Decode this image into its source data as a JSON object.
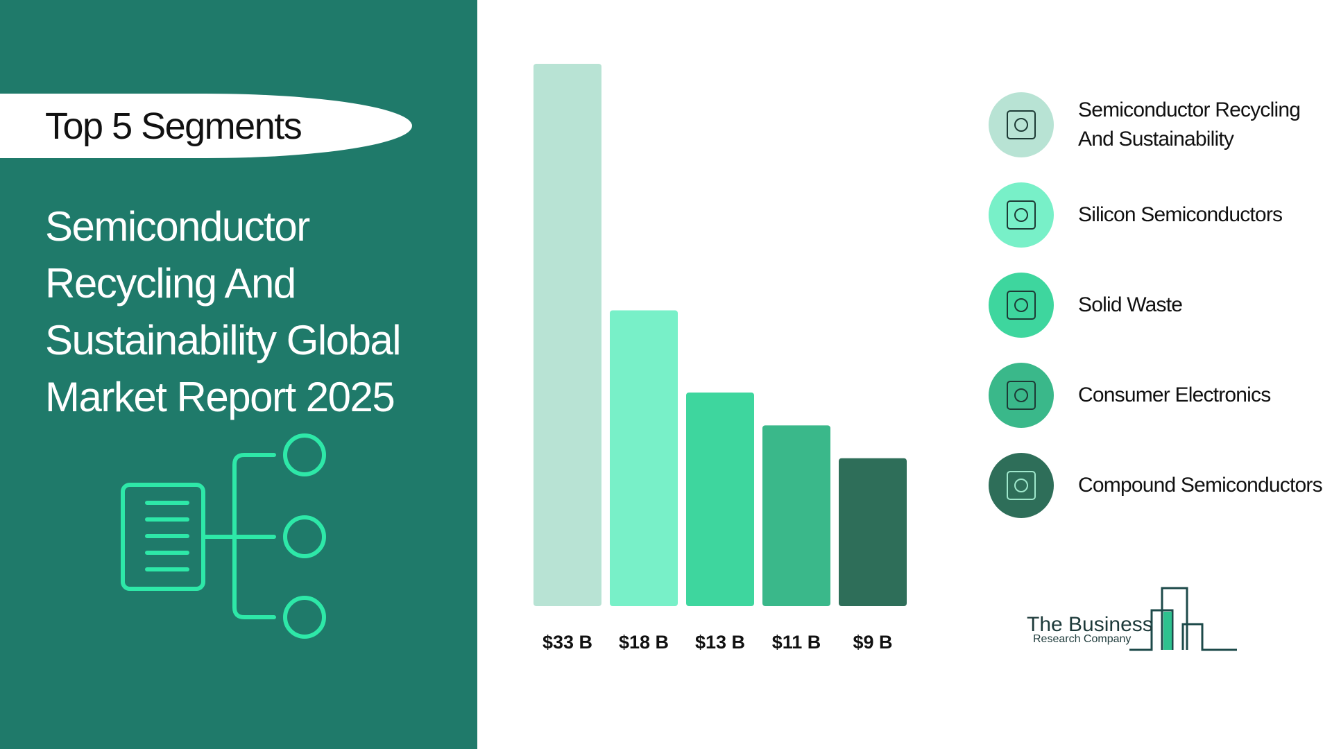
{
  "chart_data": {
    "type": "bar",
    "badge": "Top 5 Segments",
    "title": "Semiconductor Recycling And Sustainability Global Market Report 2025",
    "categories": [
      "Semiconductor Recycling And Sustainability",
      "Silicon Semiconductors",
      "Solid Waste",
      "Consumer Electronics",
      "Compound Semiconductors"
    ],
    "values": [
      33,
      18,
      13,
      11,
      9
    ],
    "value_labels": [
      "$33 B",
      "$18 B",
      "$13 B",
      "$11 B",
      "$9  B"
    ],
    "colors": [
      "#b8e3d4",
      "#78f0c8",
      "#3ed69e",
      "#3ab88a",
      "#2e6e59"
    ]
  },
  "logo": {
    "line1": "The Business",
    "line2": "Research Company"
  }
}
